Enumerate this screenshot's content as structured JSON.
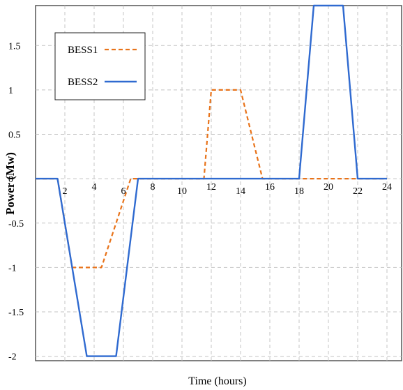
{
  "chart_data": {
    "type": "line",
    "xlabel": "Time (hours)",
    "ylabel": "Power (Mw)",
    "xlim": [
      0,
      25
    ],
    "ylim": [
      -2.05,
      1.95
    ],
    "xticks": [
      2,
      4,
      6,
      8,
      10,
      12,
      14,
      16,
      18,
      20,
      22,
      24
    ],
    "yticks": [
      -2,
      -1.5,
      -1,
      -0.5,
      0,
      0.5,
      1,
      1.5
    ],
    "ytick_labels": [
      "-2",
      "-1.5",
      "-1",
      "-0.5",
      "0",
      "0.5",
      "1",
      "1.5"
    ],
    "grid": true,
    "legend_position": "top-left",
    "series": [
      {
        "name": "BESS1",
        "color": "#e8731a",
        "style": "dashed",
        "x": [
          0,
          1.5,
          2.5,
          4.5,
          6.5,
          7,
          11.5,
          12,
          13.5,
          14,
          15.5,
          16,
          18,
          19,
          21,
          22,
          23,
          24
        ],
        "y": [
          0,
          0,
          -1,
          -1,
          0,
          0,
          0,
          1,
          1,
          1,
          0,
          0,
          0,
          0,
          0,
          0,
          0,
          0
        ]
      },
      {
        "name": "BESS2",
        "color": "#2f6ad0",
        "style": "solid",
        "x": [
          0,
          1.5,
          3.5,
          5.5,
          7,
          11,
          13,
          15,
          17,
          18,
          19,
          21,
          22,
          23,
          24
        ],
        "y": [
          0,
          0,
          -2,
          -2,
          0,
          0,
          0,
          0,
          0,
          0,
          1.95,
          1.95,
          0,
          0,
          0
        ]
      }
    ]
  }
}
